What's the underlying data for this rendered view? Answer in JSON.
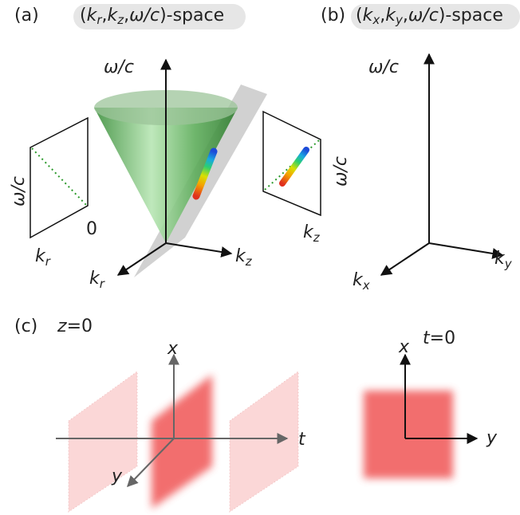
{
  "panel_a": {
    "label": "(a)",
    "heading": [
      "(",
      "k",
      "r",
      ",",
      "k",
      "z",
      ",",
      "ω/c",
      ")-space"
    ],
    "axis_omega": "ω/c",
    "axis_kz": [
      "k",
      "z"
    ],
    "axis_kr": [
      "k",
      "r"
    ],
    "inset_left": {
      "y_label": "ω/c",
      "x_label": [
        "k",
        "r"
      ],
      "zero": "0"
    },
    "inset_right": {
      "y_label": "ω/c",
      "x_label": [
        "k",
        "z"
      ]
    }
  },
  "panel_b": {
    "label": "(b)",
    "heading": [
      "(",
      "k",
      "x",
      ",",
      "k",
      "y",
      ",",
      "ω/c",
      ")-space"
    ],
    "axis_omega": "ω/c",
    "axis_ky": [
      "k",
      "y"
    ],
    "axis_kx": [
      "k",
      "x"
    ]
  },
  "panel_c": {
    "label": "(c)",
    "left_heading": [
      "z",
      "=0"
    ],
    "left_axis_x": "x",
    "left_axis_t": "t",
    "left_axis_y": "y",
    "right_heading": [
      "t",
      "=0"
    ],
    "right_axis_x": "x",
    "right_axis_y": "y"
  }
}
